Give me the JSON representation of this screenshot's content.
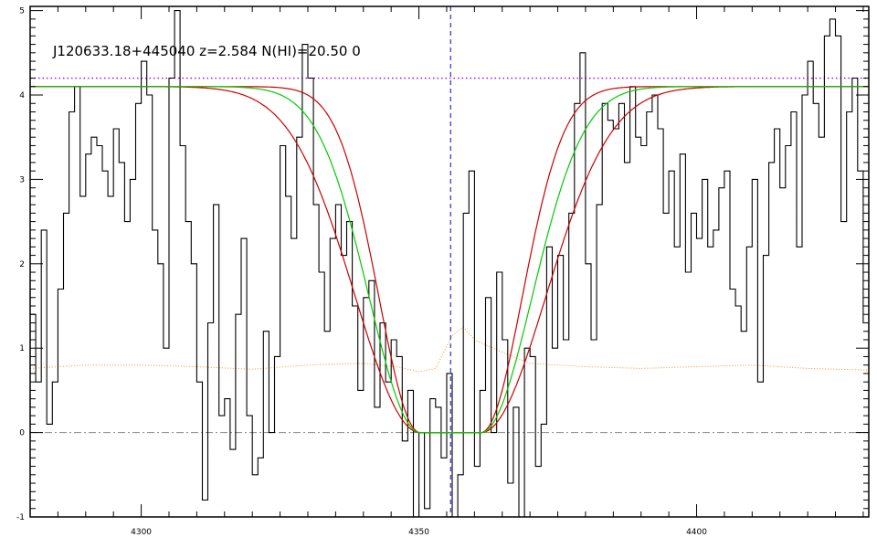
{
  "chart_data": {
    "type": "line",
    "title": "J120633.18+445040 z=2.584 N(HI)=20.50 0",
    "xlabel": "",
    "ylabel": "",
    "xlim": [
      4280,
      4431
    ],
    "ylim": [
      -1,
      5.05
    ],
    "x_ticks": [
      4300,
      4350,
      4400
    ],
    "y_ticks": [
      -1,
      0,
      1,
      2,
      3,
      4,
      5
    ],
    "grid": false,
    "reference_lines": {
      "continuum_level": 4.2,
      "zero_level": 0,
      "line_center": 4355.7
    },
    "model": {
      "continuum": 4.1,
      "center": 4355.7,
      "core_halfwidth": 5.5,
      "wing_scale": [
        10.5,
        13,
        16.5
      ]
    },
    "colors": {
      "flux": "#000000",
      "fit": "#00cc00",
      "fit_bounds": "#cc0000",
      "error": "#ff8c1a",
      "continuum_line": "#9a00ff",
      "center_line": "#0000cc",
      "zero_line": "#888888"
    },
    "series": [
      {
        "role": "flux",
        "x": [
          4280.5,
          4281.5,
          4282.5,
          4283.5,
          4284.5,
          4285.5,
          4286.5,
          4287.5,
          4288.5,
          4289.5,
          4290.5,
          4291.5,
          4292.5,
          4293.5,
          4294.5,
          4295.5,
          4296.5,
          4297.5,
          4298.5,
          4299.5,
          4300.5,
          4301.5,
          4302.5,
          4303.5,
          4304.5,
          4305.5,
          4306.5,
          4307.5,
          4308.5,
          4309.5,
          4310.5,
          4311.5,
          4312.5,
          4313.5,
          4314.5,
          4315.5,
          4316.5,
          4317.5,
          4318.5,
          4319.5,
          4320.5,
          4321.5,
          4322.5,
          4323.5,
          4324.5,
          4325.5,
          4326.5,
          4327.5,
          4328.5,
          4329.5,
          4330.5,
          4331.5,
          4332.5,
          4333.5,
          4334.5,
          4335.5,
          4336.5,
          4337.5,
          4338.5,
          4339.5,
          4340.5,
          4341.5,
          4342.5,
          4343.5,
          4344.5,
          4345.5,
          4346.5,
          4347.5,
          4348.5,
          4349.5,
          4350.5,
          4351.5,
          4352.5,
          4353.5,
          4354.5,
          4355.5,
          4356.5,
          4357.5,
          4358.5,
          4359.5,
          4360.5,
          4361.5,
          4362.5,
          4363.5,
          4364.5,
          4365.5,
          4366.5,
          4367.5,
          4368.5,
          4369.5,
          4370.5,
          4371.5,
          4372.5,
          4373.5,
          4374.5,
          4375.5,
          4376.5,
          4377.5,
          4378.5,
          4379.5,
          4380.5,
          4381.5,
          4382.5,
          4383.5,
          4384.5,
          4385.5,
          4386.5,
          4387.5,
          4388.5,
          4389.5,
          4390.5,
          4391.5,
          4392.5,
          4393.5,
          4394.5,
          4395.5,
          4396.5,
          4397.5,
          4398.5,
          4399.5,
          4400.5,
          4401.5,
          4402.5,
          4403.5,
          4404.5,
          4405.5,
          4406.5,
          4407.5,
          4408.5,
          4409.5,
          4410.5,
          4411.5,
          4412.5,
          4413.5,
          4414.5,
          4415.5,
          4416.5,
          4417.5,
          4418.5,
          4419.5,
          4420.5,
          4421.5,
          4422.5,
          4423.5,
          4424.5,
          4425.5,
          4426.5,
          4427.5,
          4428.5,
          4429.5,
          4430.5
        ],
        "y": [
          1.4,
          0.6,
          2.4,
          0.1,
          0.6,
          1.7,
          2.6,
          3.8,
          4.1,
          2.8,
          3.3,
          3.5,
          3.4,
          3.1,
          2.8,
          3.6,
          3.2,
          2.5,
          3.0,
          3.9,
          4.4,
          4.0,
          2.4,
          2.0,
          1.0,
          4.2,
          5.0,
          3.4,
          2.5,
          2.0,
          0.6,
          -0.8,
          1.3,
          2.7,
          0.2,
          0.4,
          -0.2,
          1.4,
          2.3,
          0.2,
          -0.5,
          -0.3,
          1.2,
          0.0,
          0.9,
          3.4,
          2.8,
          2.3,
          3.5,
          4.6,
          4.2,
          2.7,
          1.9,
          1.2,
          2.3,
          2.7,
          2.1,
          2.5,
          1.5,
          0.5,
          1.6,
          1.8,
          0.3,
          1.3,
          0.6,
          1.1,
          0.9,
          -0.1,
          0.5,
          -1.0,
          0.0,
          -0.9,
          0.4,
          0.3,
          -0.3,
          0.7,
          -1.0,
          -0.5,
          2.6,
          3.1,
          -0.4,
          0.5,
          1.6,
          0.0,
          1.9,
          1.1,
          -0.6,
          0.3,
          -1.0,
          1.0,
          0.9,
          -0.4,
          0.1,
          2.2,
          1.0,
          2.1,
          1.1,
          2.6,
          3.9,
          4.5,
          2.0,
          1.1,
          2.7,
          3.9,
          3.7,
          3.6,
          3.9,
          3.2,
          4.1,
          3.5,
          3.4,
          3.8,
          4.0,
          3.6,
          2.6,
          3.1,
          2.2,
          3.3,
          1.9,
          2.6,
          2.3,
          3.0,
          2.2,
          2.4,
          2.9,
          3.1,
          1.7,
          1.5,
          1.2,
          2.2,
          3.0,
          0.6,
          2.1,
          3.2,
          3.6,
          2.9,
          3.4,
          3.8,
          2.2,
          4.0,
          4.4,
          3.9,
          3.5,
          4.7,
          4.9,
          4.7,
          2.5,
          3.8,
          4.2,
          3.1,
          1.3
        ]
      },
      {
        "role": "error",
        "x": [
          4280,
          4290,
          4300,
          4310,
          4320,
          4330,
          4340,
          4346,
          4350,
          4353,
          4356,
          4358,
          4360,
          4365,
          4370,
          4380,
          4390,
          4400,
          4410,
          4420,
          4431
        ],
        "y": [
          0.76,
          0.8,
          0.8,
          0.78,
          0.75,
          0.8,
          0.82,
          0.78,
          0.72,
          0.76,
          1.15,
          1.25,
          1.1,
          0.95,
          0.82,
          0.78,
          0.76,
          0.78,
          0.8,
          0.76,
          0.74
        ]
      },
      {
        "role": "fit"
      },
      {
        "role": "fit_bounds"
      }
    ]
  }
}
